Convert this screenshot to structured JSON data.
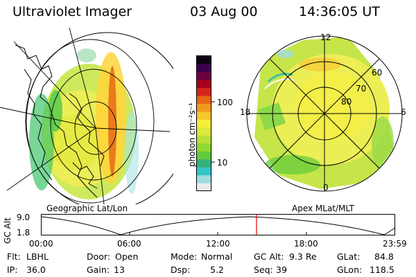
{
  "header": {
    "instrument": "Ultraviolet Imager",
    "date": "03 Aug 00",
    "time": "14:36:05 UT"
  },
  "geo_panel": {
    "caption": "Geographic Lat/Lon"
  },
  "apex_panel": {
    "caption": "Apex MLat/MLT",
    "mlt_labels": [
      "12",
      "18",
      "6",
      "0"
    ],
    "mlat_labels": [
      "60",
      "70",
      "80"
    ]
  },
  "colorbar": {
    "unit": "photon cm⁻²s⁻¹",
    "ticks": [
      "100",
      "10"
    ],
    "colors": [
      "#e8ecef",
      "#9fdce2",
      "#34c4c9",
      "#34b27a",
      "#5fcb3b",
      "#8fd92f",
      "#b9e038",
      "#dce83b",
      "#f4ee3a",
      "#f7c52c",
      "#f39a1d",
      "#e86515",
      "#d2261b",
      "#a6001c",
      "#6b0040",
      "#3d0050",
      "#0f0018"
    ]
  },
  "orbit": {
    "axis_label": "GC Alt",
    "y_ticks": [
      "9.0",
      "1.8"
    ],
    "x_ticks": [
      "00:00",
      "06:00",
      "12:00",
      "18:00",
      "23:59"
    ],
    "marker_color": "#e8231e"
  },
  "status": [
    [
      {
        "key": "Flt:",
        "value": "LBHL"
      },
      {
        "key": "Door:",
        "value": "Open"
      },
      {
        "key": "Mode:",
        "value": "Normal"
      },
      {
        "key": "GC Alt:",
        "value": "9.3 Re"
      },
      {
        "key": "GLat:",
        "value": "84.8"
      }
    ],
    [
      {
        "key": "IP:",
        "value": "36.0"
      },
      {
        "key": "Gain:",
        "value": "13"
      },
      {
        "key": "Dsp:",
        "value": "5.2"
      },
      {
        "key": "Seq:",
        "value": "39"
      },
      {
        "key": "GLon:",
        "value": "118.5"
      }
    ]
  ]
}
